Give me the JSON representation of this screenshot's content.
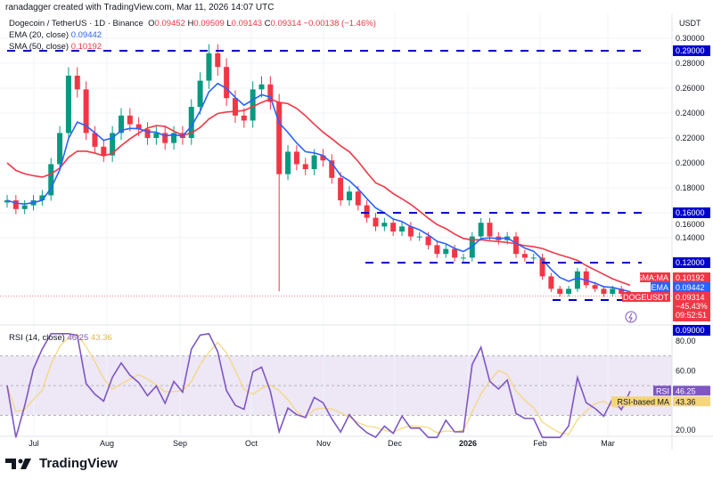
{
  "credit": "ranadagger created with TradingView.com, Mar 11, 2026 14:07 UTC",
  "symbol": {
    "title": "Dogecoin / TetherUS · 1D · Binance",
    "o_label": "O",
    "o": "0.09452",
    "h_label": "H",
    "h": "0.09509",
    "l_label": "L",
    "l": "0.09143",
    "c_label": "C",
    "c": "0.09314",
    "change": "−0.00138 (−1.46%)"
  },
  "indicators": {
    "ema_label": "EMA (20, close)",
    "ema_value": "0.09442",
    "sma_label": "SMA (50, close)",
    "sma_value": "0.10192",
    "rsi_label": "RSI (14, close)",
    "rsi_value": "46.25",
    "rsi_ma_value": "43.36"
  },
  "price_axis": {
    "currency": "USDT",
    "ticks": [
      "0.30000",
      "0.28000",
      "0.26000",
      "0.24000",
      "0.22000",
      "0.20000",
      "0.18000",
      "0.16000",
      "0.14000"
    ]
  },
  "rsi_axis": {
    "ticks": [
      "80.00",
      "60.00",
      "20.00"
    ]
  },
  "time_axis": [
    "Jul",
    "Aug",
    "Sep",
    "Oct",
    "Nov",
    "Dec",
    "2026",
    "Feb",
    "Mar"
  ],
  "tags": {
    "line_029": "0.29000",
    "line_016": "0.16000",
    "line_012": "0.12000",
    "line_009": "0.09000",
    "sma_name": "SMA:MA",
    "sma": "0.10192",
    "ema_name": "EMA",
    "ema": "0.09442",
    "sym_name": "DOGEUSDT",
    "price": "0.09314",
    "pct": "−45.43%",
    "countdown": "09:52:51",
    "rsi_name": "RSI",
    "rsi": "46.25",
    "rsi_ma_name": "RSI-based MA",
    "rsi_ma": "43.36"
  },
  "logo": "TradingView",
  "colors": {
    "up": "#089981",
    "down": "#f23645",
    "ema": "#2962ff",
    "sma": "#f23645",
    "hline": "#0000cc",
    "rsi": "#7e57c2",
    "rsi_ma": "#f5d57a",
    "rsi_band": "#ede7f6"
  },
  "chart_data": {
    "type": "candlestick",
    "date_range": [
      "2025-06-20",
      "2026-03-11"
    ],
    "ylim": [
      0.085,
      0.305
    ],
    "horizontal_levels": [
      0.29,
      0.16,
      0.12,
      0.09
    ],
    "closes": [
      0.17,
      0.163,
      0.166,
      0.17,
      0.174,
      0.199,
      0.224,
      0.27,
      0.259,
      0.224,
      0.213,
      0.206,
      0.224,
      0.238,
      0.231,
      0.227,
      0.22,
      0.224,
      0.216,
      0.224,
      0.22,
      0.245,
      0.266,
      0.288,
      0.277,
      0.252,
      0.238,
      0.234,
      0.259,
      0.263,
      0.249,
      0.191,
      0.209,
      0.199,
      0.195,
      0.206,
      0.202,
      0.188,
      0.17,
      0.177,
      0.166,
      0.156,
      0.149,
      0.152,
      0.145,
      0.149,
      0.141,
      0.141,
      0.134,
      0.127,
      0.131,
      0.124,
      0.124,
      0.141,
      0.152,
      0.141,
      0.138,
      0.141,
      0.127,
      0.124,
      0.124,
      0.109,
      0.099,
      0.095,
      0.099,
      0.113,
      0.102,
      0.099,
      0.095,
      0.099,
      0.095,
      0.0931
    ],
    "rsi_ylim": [
      10,
      90
    ]
  }
}
